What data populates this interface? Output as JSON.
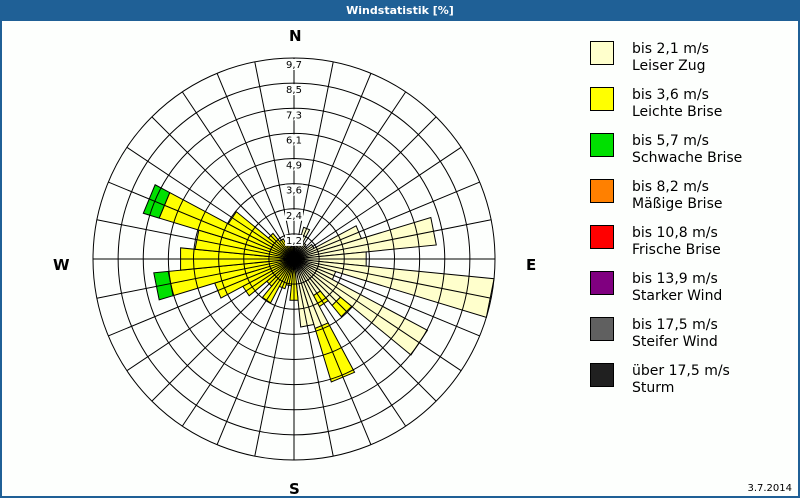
{
  "window": {
    "title": "Windstatistik [%]",
    "date": "3.7.2014"
  },
  "compass": {
    "n": "N",
    "e": "E",
    "s": "S",
    "w": "W"
  },
  "legend": [
    {
      "range": "bis 2,1 m/s",
      "name": "Leiser Zug",
      "color": "#ffffcc"
    },
    {
      "range": "bis 3,6 m/s",
      "name": "Leichte Brise",
      "color": "#ffff00"
    },
    {
      "range": "bis 5,7 m/s",
      "name": "Schwache Brise",
      "color": "#00e000"
    },
    {
      "range": "bis 8,2 m/s",
      "name": "Mäßige Brise",
      "color": "#ff8000"
    },
    {
      "range": "bis 10,8 m/s",
      "name": "Frische Brise",
      "color": "#ff0000"
    },
    {
      "range": "bis 13,9 m/s",
      "name": "Starker Wind",
      "color": "#800080"
    },
    {
      "range": "bis 17,5 m/s",
      "name": "Steifer Wind",
      "color": "#606060"
    },
    {
      "range": "über 17,5 m/s",
      "name": "Sturm",
      "color": "#202020"
    }
  ],
  "chart_data": {
    "type": "wind-rose (stacked polar bar)",
    "title": "Windstatistik [%]",
    "unit": "%",
    "ring_labels": [
      "1,2",
      "2,4",
      "3,6",
      "4,9",
      "6,1",
      "7,3",
      "8,5",
      "9,7"
    ],
    "rmax": 9.7,
    "sector_count": 32,
    "sector_width_deg": 11.25,
    "series_names": [
      "bis 2,1 m/s",
      "bis 3,6 m/s",
      "bis 5,7 m/s",
      "bis 8,2 m/s",
      "bis 10,8 m/s",
      "bis 13,9 m/s",
      "bis 17,5 m/s",
      "über 17,5 m/s"
    ],
    "sectors": [
      {
        "dir": 0,
        "values": [
          0.6,
          0.0,
          0,
          0,
          0,
          0,
          0,
          0
        ]
      },
      {
        "dir": 11.25,
        "values": [
          1.0,
          0.0,
          0,
          0,
          0,
          0,
          0,
          0
        ]
      },
      {
        "dir": 22.5,
        "values": [
          1.6,
          0.0,
          0,
          0,
          0,
          0,
          0,
          0
        ]
      },
      {
        "dir": 33.75,
        "values": [
          0.9,
          0.0,
          0,
          0,
          0,
          0,
          0,
          0
        ]
      },
      {
        "dir": 45,
        "values": [
          0.8,
          0.0,
          0,
          0,
          0,
          0,
          0,
          0
        ]
      },
      {
        "dir": 56.25,
        "values": [
          1.1,
          0.0,
          0,
          0,
          0,
          0,
          0,
          0
        ]
      },
      {
        "dir": 67.5,
        "values": [
          3.4,
          0.0,
          0,
          0,
          0,
          0,
          0,
          0
        ]
      },
      {
        "dir": 78.75,
        "values": [
          6.9,
          0.0,
          0,
          0,
          0,
          0,
          0,
          0
        ]
      },
      {
        "dir": 90,
        "values": [
          3.5,
          0.0,
          0,
          0,
          0,
          0,
          0,
          0
        ]
      },
      {
        "dir": 101.25,
        "values": [
          9.7,
          0.0,
          0,
          0,
          0,
          0,
          0,
          0
        ]
      },
      {
        "dir": 112.5,
        "values": [
          2.1,
          0.0,
          0,
          0,
          0,
          0,
          0,
          0
        ]
      },
      {
        "dir": 123.75,
        "values": [
          7.3,
          0.0,
          0,
          0,
          0,
          0,
          0,
          0
        ]
      },
      {
        "dir": 135,
        "values": [
          2.9,
          0.7,
          0,
          0,
          0,
          0,
          0,
          0
        ]
      },
      {
        "dir": 146.25,
        "values": [
          2.0,
          0.6,
          0,
          0,
          0,
          0,
          0,
          0
        ]
      },
      {
        "dir": 157.5,
        "values": [
          3.5,
          2.7,
          0,
          0,
          0,
          0,
          0,
          0
        ]
      },
      {
        "dir": 168.75,
        "values": [
          3.3,
          0.0,
          0,
          0,
          0,
          0,
          0,
          0
        ]
      },
      {
        "dir": 180,
        "values": [
          0.5,
          1.5,
          0,
          0,
          0,
          0,
          0,
          0
        ]
      },
      {
        "dir": 191.25,
        "values": [
          0.3,
          1.0,
          0,
          0,
          0,
          0,
          0,
          0
        ]
      },
      {
        "dir": 202.5,
        "values": [
          0.3,
          1.2,
          0,
          0,
          0,
          0,
          0,
          0
        ]
      },
      {
        "dir": 213.75,
        "values": [
          0.3,
          2.1,
          0,
          0,
          0,
          0,
          0,
          0
        ]
      },
      {
        "dir": 225,
        "values": [
          0.3,
          1.4,
          0,
          0,
          0,
          0,
          0,
          0
        ]
      },
      {
        "dir": 236.25,
        "values": [
          0.3,
          2.5,
          0,
          0,
          0,
          0,
          0,
          0
        ]
      },
      {
        "dir": 247.5,
        "values": [
          0.3,
          3.7,
          0,
          0,
          0,
          0,
          0,
          0
        ]
      },
      {
        "dir": 258.75,
        "values": [
          0.3,
          5.8,
          0.7,
          0,
          0,
          0,
          0,
          0
        ]
      },
      {
        "dir": 270,
        "values": [
          0.3,
          5.2,
          0,
          0,
          0,
          0,
          0,
          0
        ]
      },
      {
        "dir": 281.25,
        "values": [
          0.3,
          4.5,
          0,
          0,
          0,
          0,
          0,
          0
        ]
      },
      {
        "dir": 292.5,
        "values": [
          0.3,
          6.5,
          0.8,
          0,
          0,
          0,
          0,
          0
        ]
      },
      {
        "dir": 303.75,
        "values": [
          0.3,
          3.3,
          0,
          0,
          0,
          0,
          0,
          0
        ]
      },
      {
        "dir": 315,
        "values": [
          0.3,
          1.3,
          0,
          0,
          0,
          0,
          0,
          0
        ]
      },
      {
        "dir": 326.25,
        "values": [
          0.3,
          0.8,
          0,
          0,
          0,
          0,
          0,
          0
        ]
      },
      {
        "dir": 337.5,
        "values": [
          0.3,
          0.5,
          0,
          0,
          0,
          0,
          0,
          0
        ]
      },
      {
        "dir": 348.75,
        "values": [
          0.4,
          0.2,
          0,
          0,
          0,
          0,
          0,
          0
        ]
      }
    ],
    "grid": true,
    "legend_position": "right"
  }
}
